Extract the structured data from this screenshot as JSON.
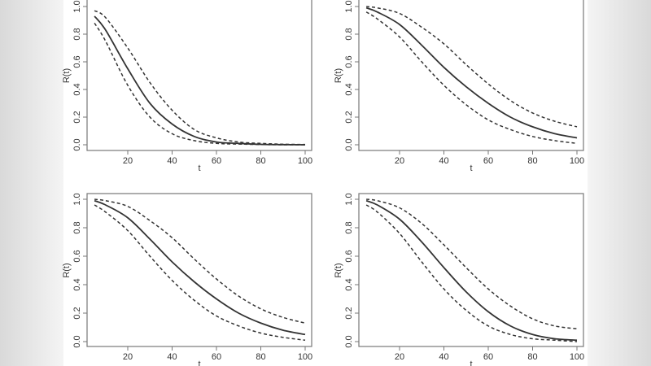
{
  "chart_data": [
    {
      "type": "line",
      "xlabel": "t",
      "ylabel": "R(t)",
      "xlim": [
        5,
        100
      ],
      "ylim": [
        0,
        1
      ],
      "xticks": [
        20,
        40,
        60,
        80,
        100
      ],
      "yticks": [
        "0.0",
        "0.2",
        "0.4",
        "0.6",
        "0.8",
        "1.0"
      ],
      "grid": false,
      "x": [
        5,
        10,
        20,
        30,
        40,
        50,
        60,
        70,
        80,
        90,
        100
      ],
      "series": [
        {
          "style": "solid",
          "values": [
            0.93,
            0.83,
            0.55,
            0.3,
            0.15,
            0.06,
            0.02,
            0.01,
            0.003,
            0.001,
            0.0
          ]
        },
        {
          "style": "dashed",
          "values": [
            0.97,
            0.92,
            0.7,
            0.45,
            0.25,
            0.11,
            0.05,
            0.02,
            0.01,
            0.004,
            0.002
          ]
        },
        {
          "style": "dashed",
          "values": [
            0.88,
            0.75,
            0.43,
            0.2,
            0.08,
            0.03,
            0.01,
            0.005,
            0.002,
            0.0,
            0.0
          ]
        }
      ]
    },
    {
      "type": "line",
      "xlabel": "t",
      "ylabel": "R(t)",
      "xlim": [
        5,
        100
      ],
      "ylim": [
        0,
        1
      ],
      "xticks": [
        20,
        40,
        60,
        80,
        100
      ],
      "yticks": [
        "0.0",
        "0.2",
        "0.4",
        "0.6",
        "0.8",
        "1.0"
      ],
      "grid": false,
      "x": [
        5,
        10,
        20,
        30,
        40,
        50,
        60,
        70,
        80,
        90,
        100
      ],
      "series": [
        {
          "style": "solid",
          "values": [
            0.99,
            0.96,
            0.87,
            0.72,
            0.56,
            0.42,
            0.3,
            0.2,
            0.13,
            0.08,
            0.05
          ]
        },
        {
          "style": "dashed",
          "values": [
            1.0,
            0.99,
            0.95,
            0.85,
            0.73,
            0.58,
            0.44,
            0.32,
            0.23,
            0.17,
            0.13
          ]
        },
        {
          "style": "dashed",
          "values": [
            0.96,
            0.91,
            0.78,
            0.6,
            0.43,
            0.29,
            0.18,
            0.11,
            0.06,
            0.03,
            0.01
          ]
        }
      ]
    },
    {
      "type": "line",
      "xlabel": "t",
      "ylabel": "R(t)",
      "xlim": [
        5,
        100
      ],
      "ylim": [
        0,
        1
      ],
      "xticks": [
        20,
        40,
        60,
        80,
        100
      ],
      "yticks": [
        "0.0",
        "0.2",
        "0.4",
        "0.6",
        "0.8",
        "1.0"
      ],
      "grid": false,
      "x": [
        5,
        10,
        20,
        30,
        40,
        50,
        60,
        70,
        80,
        90,
        100
      ],
      "series": [
        {
          "style": "solid",
          "values": [
            0.99,
            0.96,
            0.87,
            0.72,
            0.56,
            0.42,
            0.3,
            0.2,
            0.13,
            0.08,
            0.05
          ]
        },
        {
          "style": "dashed",
          "values": [
            1.0,
            0.99,
            0.95,
            0.85,
            0.73,
            0.58,
            0.44,
            0.32,
            0.23,
            0.17,
            0.13
          ]
        },
        {
          "style": "dashed",
          "values": [
            0.96,
            0.91,
            0.78,
            0.6,
            0.43,
            0.29,
            0.18,
            0.11,
            0.06,
            0.03,
            0.01
          ]
        }
      ]
    },
    {
      "type": "line",
      "xlabel": "t",
      "ylabel": "R(t)",
      "xlim": [
        5,
        100
      ],
      "ylim": [
        0,
        1
      ],
      "xticks": [
        20,
        40,
        60,
        80,
        100
      ],
      "yticks": [
        "0.0",
        "0.2",
        "0.4",
        "0.6",
        "0.8",
        "1.0"
      ],
      "grid": false,
      "x": [
        5,
        10,
        20,
        30,
        40,
        50,
        60,
        70,
        80,
        90,
        100
      ],
      "series": [
        {
          "style": "solid",
          "values": [
            0.99,
            0.96,
            0.86,
            0.7,
            0.52,
            0.35,
            0.21,
            0.11,
            0.05,
            0.02,
            0.01
          ]
        },
        {
          "style": "dashed",
          "values": [
            1.0,
            0.99,
            0.94,
            0.83,
            0.68,
            0.52,
            0.37,
            0.25,
            0.16,
            0.11,
            0.09
          ]
        },
        {
          "style": "dashed",
          "values": [
            0.96,
            0.91,
            0.76,
            0.56,
            0.37,
            0.22,
            0.11,
            0.05,
            0.02,
            0.01,
            0.0
          ]
        }
      ]
    }
  ]
}
